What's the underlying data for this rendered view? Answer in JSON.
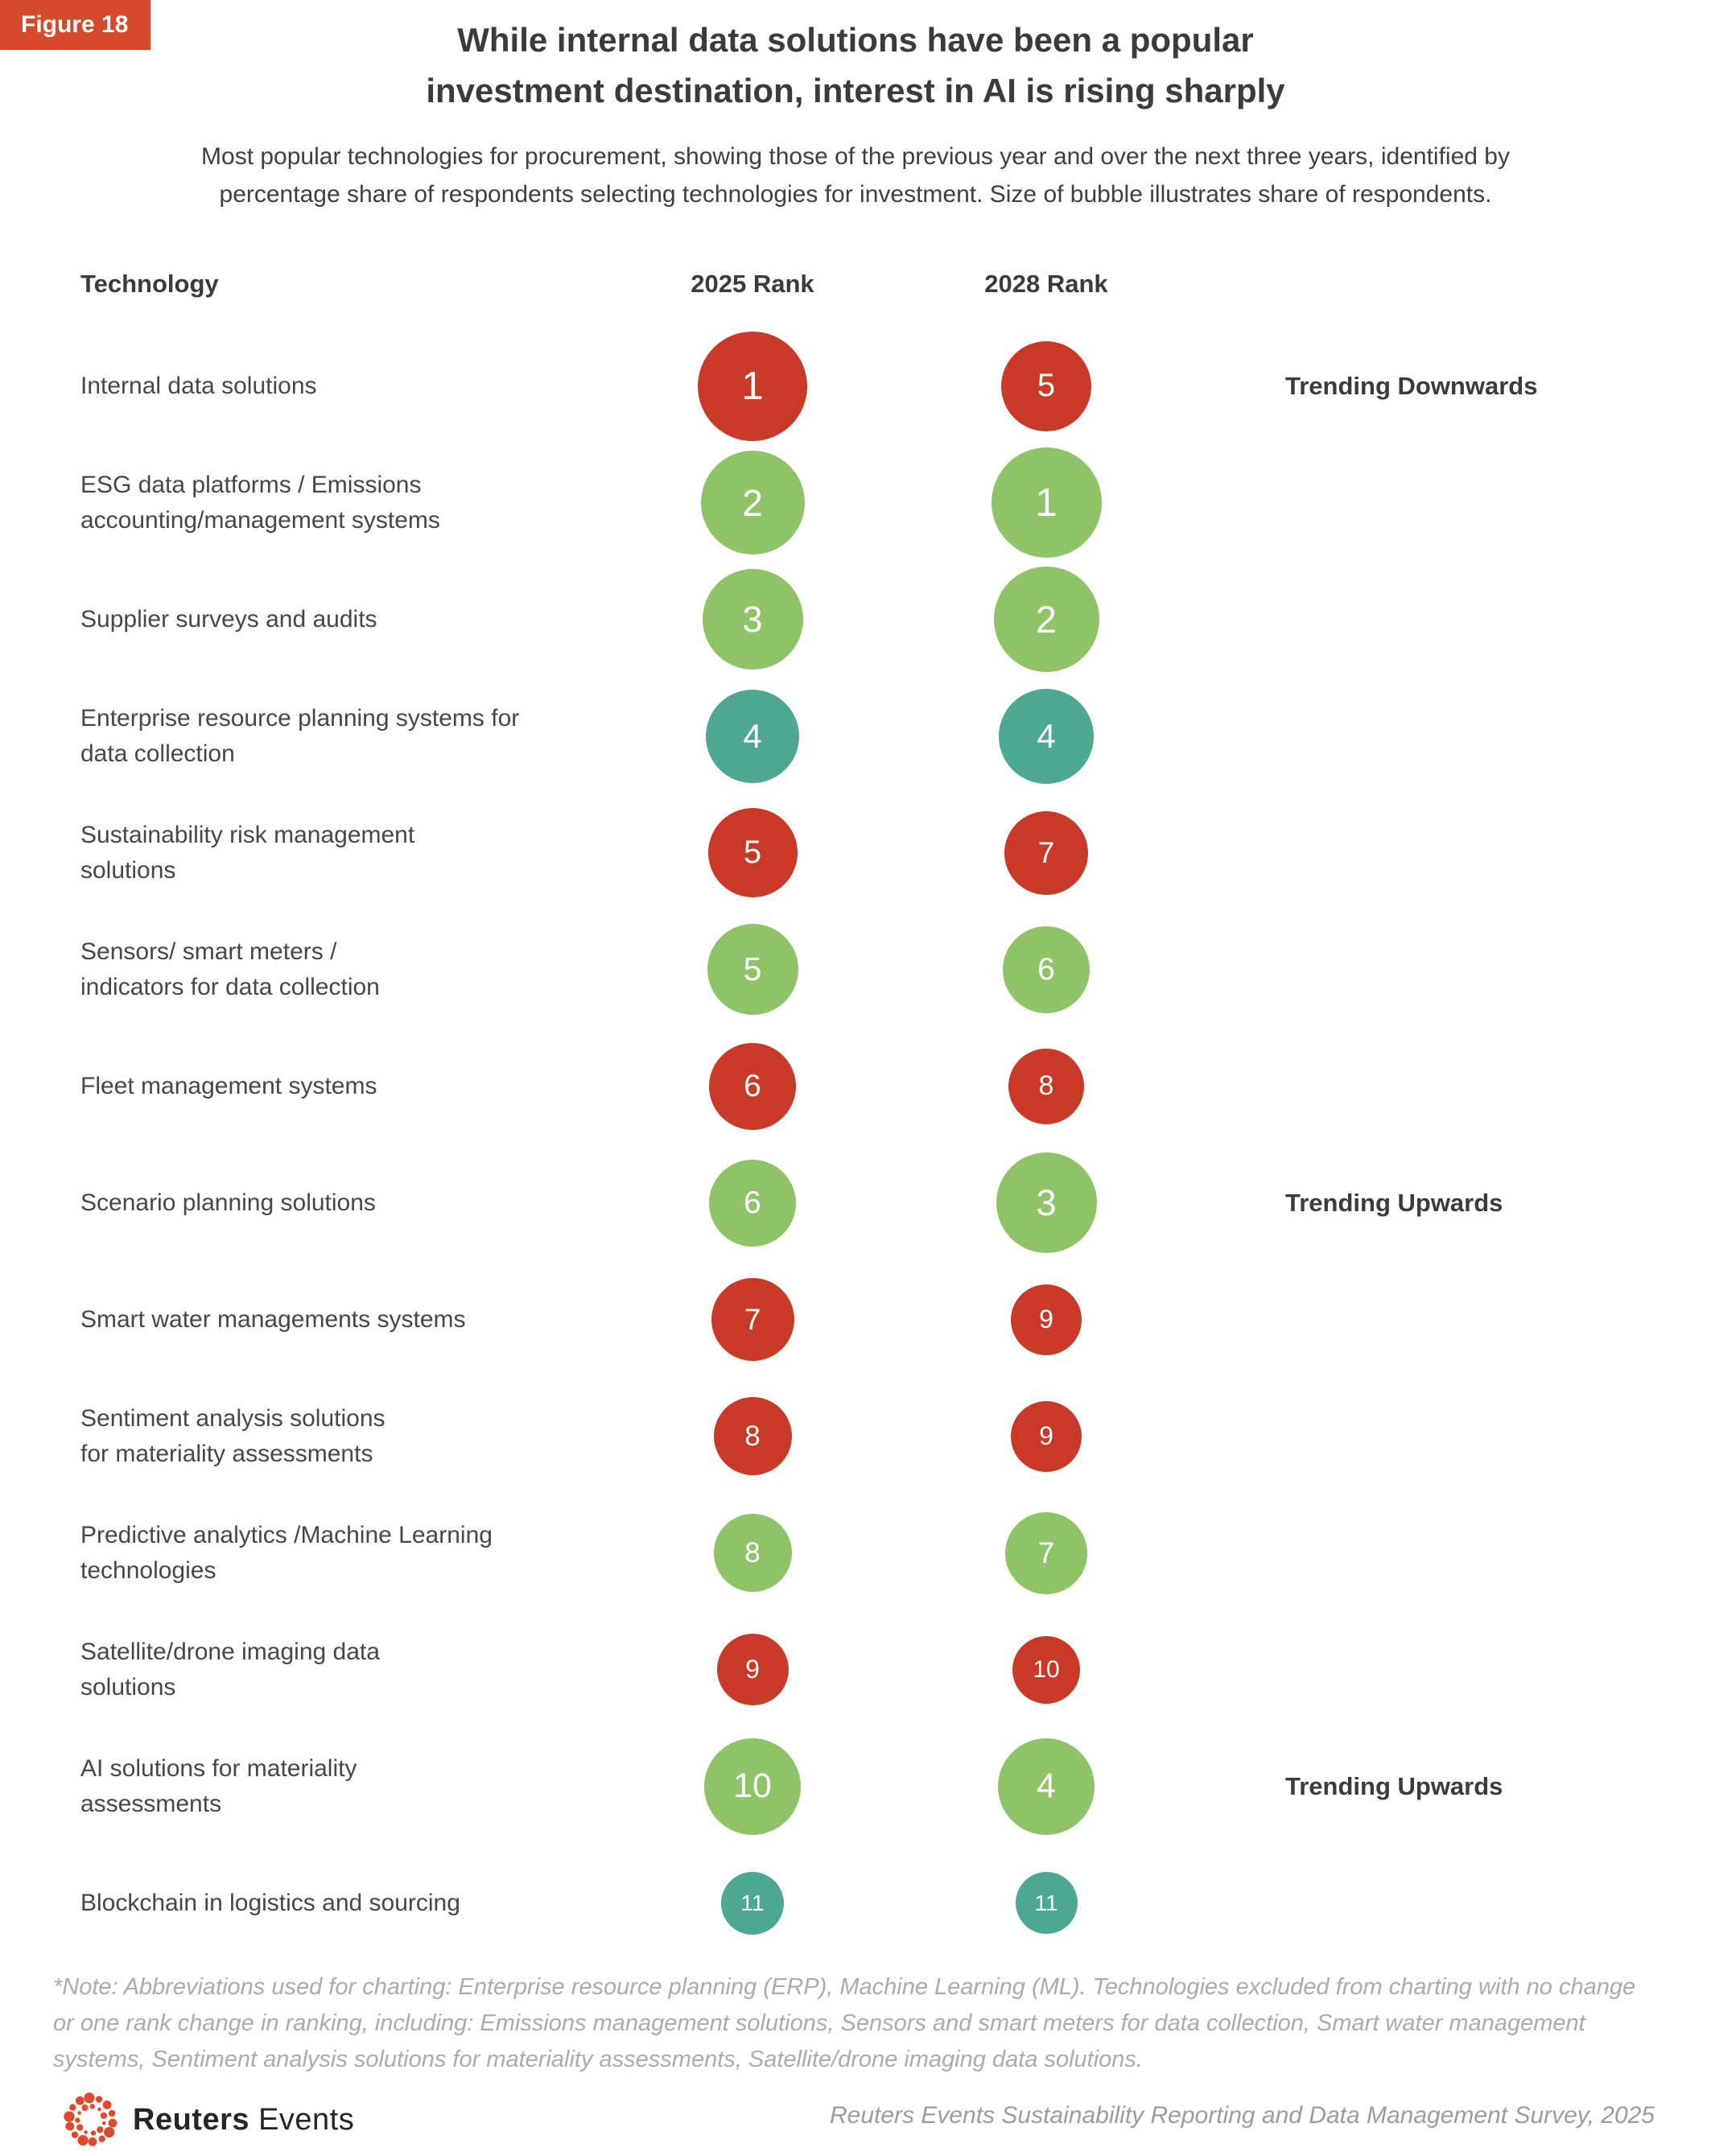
{
  "figure_label": "Figure 18",
  "title_line1": "While internal data solutions have been a popular",
  "title_line2": "investment destination, interest in AI is rising sharply",
  "subtitle_line1": "Most popular technologies for procurement, showing those of the previous year and over the next three years, identified by",
  "subtitle_line2": "percentage share of respondents selecting technologies for investment. Size of bubble illustrates share of respondents.",
  "columns": {
    "technology": "Technology",
    "rank2025": "2025 Rank",
    "rank2028": "2028 Rank"
  },
  "colors": {
    "red": "#c83a27",
    "green": "#8fc367",
    "teal": "#4ea890",
    "badge": "#d44a2a",
    "logo_orange": "#e0492b"
  },
  "chart_data": {
    "type": "bubble",
    "description": "Ranked bubble table; bubble size illustrates share of respondents selecting each technology for investment",
    "columns": [
      "2025 Rank",
      "2028 Rank"
    ],
    "legend_position": "none",
    "rows": [
      {
        "technology_lines": [
          "Internal data solutions"
        ],
        "rank_2025": 1,
        "rank_2028": 5,
        "color": "red",
        "size_2025": 136,
        "size_2028": 112,
        "trend": "Trending Downwards"
      },
      {
        "technology_lines": [
          "ESG data platforms / Emissions",
          "accounting/management systems"
        ],
        "rank_2025": 2,
        "rank_2028": 1,
        "color": "green",
        "size_2025": 129,
        "size_2028": 137,
        "trend": ""
      },
      {
        "technology_lines": [
          "Supplier surveys and audits"
        ],
        "rank_2025": 3,
        "rank_2028": 2,
        "color": "green",
        "size_2025": 125,
        "size_2028": 131,
        "trend": ""
      },
      {
        "technology_lines": [
          "Enterprise resource planning systems for",
          "data collection"
        ],
        "rank_2025": 4,
        "rank_2028": 4,
        "color": "teal",
        "size_2025": 116,
        "size_2028": 118,
        "trend": ""
      },
      {
        "technology_lines": [
          "Sustainability risk management",
          "solutions"
        ],
        "rank_2025": 5,
        "rank_2028": 7,
        "color": "red",
        "size_2025": 111,
        "size_2028": 104,
        "trend": ""
      },
      {
        "technology_lines": [
          "Sensors/ smart meters /",
          "indicators for data collection"
        ],
        "rank_2025": 5,
        "rank_2028": 6,
        "color": "green",
        "size_2025": 113,
        "size_2028": 108,
        "trend": ""
      },
      {
        "technology_lines": [
          "Fleet management systems"
        ],
        "rank_2025": 6,
        "rank_2028": 8,
        "color": "red",
        "size_2025": 108,
        "size_2028": 94,
        "trend": ""
      },
      {
        "technology_lines": [
          "Scenario planning solutions"
        ],
        "rank_2025": 6,
        "rank_2028": 3,
        "color": "green",
        "size_2025": 108,
        "size_2028": 125,
        "trend": "Trending Upwards"
      },
      {
        "technology_lines": [
          "Smart water managements systems"
        ],
        "rank_2025": 7,
        "rank_2028": 9,
        "color": "red",
        "size_2025": 103,
        "size_2028": 88,
        "trend": ""
      },
      {
        "technology_lines": [
          "Sentiment analysis solutions",
          "for materiality assessments"
        ],
        "rank_2025": 8,
        "rank_2028": 9,
        "color": "red",
        "size_2025": 97,
        "size_2028": 88,
        "trend": ""
      },
      {
        "technology_lines": [
          "Predictive analytics /Machine Learning",
          "technologies"
        ],
        "rank_2025": 8,
        "rank_2028": 7,
        "color": "green",
        "size_2025": 97,
        "size_2028": 102,
        "trend": ""
      },
      {
        "technology_lines": [
          "Satellite/drone imaging data",
          "solutions"
        ],
        "rank_2025": 9,
        "rank_2028": 10,
        "color": "red",
        "size_2025": 89,
        "size_2028": 84,
        "trend": ""
      },
      {
        "technology_lines": [
          "AI solutions for materiality",
          "assessments"
        ],
        "rank_2025": 10,
        "rank_2028": 4,
        "color": "green",
        "size_2025": 120,
        "size_2028": 120,
        "trend": "Trending Upwards"
      },
      {
        "technology_lines": [
          "Blockchain in logistics and sourcing"
        ],
        "rank_2025": 11,
        "rank_2028": 11,
        "color": "teal",
        "size_2025": 78,
        "size_2028": 77,
        "trend": ""
      }
    ]
  },
  "note": "*Note: Abbreviations used for charting: Enterprise resource planning (ERP), Machine Learning (ML). Technologies excluded from charting with no change or one rank change in ranking, including: Emissions management solutions, Sensors and smart meters for data collection, Smart water management systems, Sentiment analysis solutions for materiality assessments, Satellite/drone imaging data solutions.",
  "footer": {
    "logo_bold": "Reuters",
    "logo_regular": "Events",
    "source": "Reuters Events Sustainability Reporting and Data Management Survey, 2025"
  }
}
